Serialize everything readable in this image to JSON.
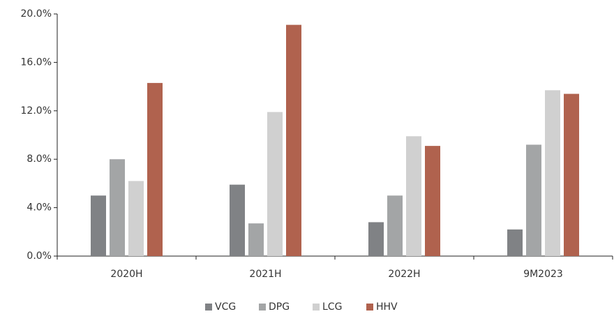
{
  "chart_data": {
    "type": "bar",
    "categories": [
      "2020H",
      "2021H",
      "2022H",
      "9M2023"
    ],
    "series": [
      {
        "name": "VCG",
        "color": "#808285",
        "values": [
          5.0,
          5.9,
          2.8,
          2.2
        ]
      },
      {
        "name": "DPG",
        "color": "#a3a5a6",
        "values": [
          8.0,
          2.7,
          5.0,
          9.2
        ]
      },
      {
        "name": "LCG",
        "color": "#d0d0d0",
        "values": [
          6.2,
          11.9,
          9.9,
          13.7
        ]
      },
      {
        "name": "HHV",
        "color": "#b0624e",
        "values": [
          14.3,
          19.1,
          9.1,
          13.4
        ]
      }
    ],
    "ylim": [
      0,
      20
    ],
    "yticks": [
      {
        "value": 0,
        "label": "0.0%"
      },
      {
        "value": 4,
        "label": "4.0%"
      },
      {
        "value": 8,
        "label": "8.0%"
      },
      {
        "value": 12,
        "label": "12.0%"
      },
      {
        "value": 16,
        "label": "16.0%"
      },
      {
        "value": 20,
        "label": "20.0%"
      }
    ],
    "grid": false,
    "legend": "bottom"
  }
}
